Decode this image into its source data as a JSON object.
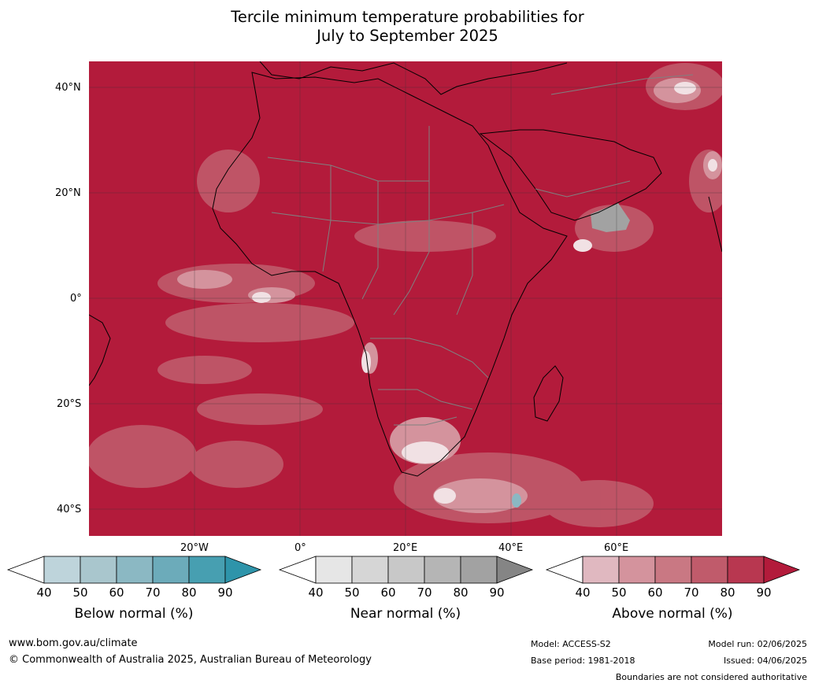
{
  "title_line1": "Tercile minimum temperature probabilities for",
  "title_line2": "July to September 2025",
  "map": {
    "lat_labels": [
      "40°N",
      "20°N",
      "0°",
      "20°S",
      "40°S"
    ],
    "lon_labels": [
      "20°W",
      "0°",
      "20°E",
      "40°E",
      "60°E"
    ],
    "ocean_color": "#b31b3b",
    "land_color": "#b31b3b",
    "coast_color": "#000000",
    "border_color": "#808080"
  },
  "colorbars": [
    {
      "name": "below",
      "title": "Below normal (%)",
      "ticks": [
        "40",
        "50",
        "60",
        "70",
        "80",
        "90"
      ],
      "colors": [
        "#ffffff",
        "#bed4db",
        "#a9c6cd",
        "#8bb8c3",
        "#6cabba",
        "#479fb1",
        "#2e94aa"
      ]
    },
    {
      "name": "near",
      "title": "Near normal (%)",
      "ticks": [
        "40",
        "50",
        "60",
        "70",
        "80",
        "90"
      ],
      "colors": [
        "#ffffff",
        "#e6e6e6",
        "#d6d6d6",
        "#c8c8c8",
        "#b5b5b5",
        "#a2a2a2",
        "#858585"
      ]
    },
    {
      "name": "above",
      "title": "Above normal (%)",
      "ticks": [
        "40",
        "50",
        "60",
        "70",
        "80",
        "90"
      ],
      "colors": [
        "#ffffff",
        "#e0b8c0",
        "#d4939d",
        "#c97883",
        "#c05b6b",
        "#b83750",
        "#b31b3b"
      ]
    }
  ],
  "footer": {
    "website": "www.bom.gov.au/climate",
    "copyright": "© Commonwealth of Australia 2025, Australian Bureau of Meteorology",
    "model": "Model: ACCESS-S2",
    "base_period": "Base period: 1981-2018",
    "model_run": "Model run: 02/06/2025",
    "issued": "Issued: 04/06/2025",
    "disclaimer": "Boundaries are not considered authoritative"
  }
}
